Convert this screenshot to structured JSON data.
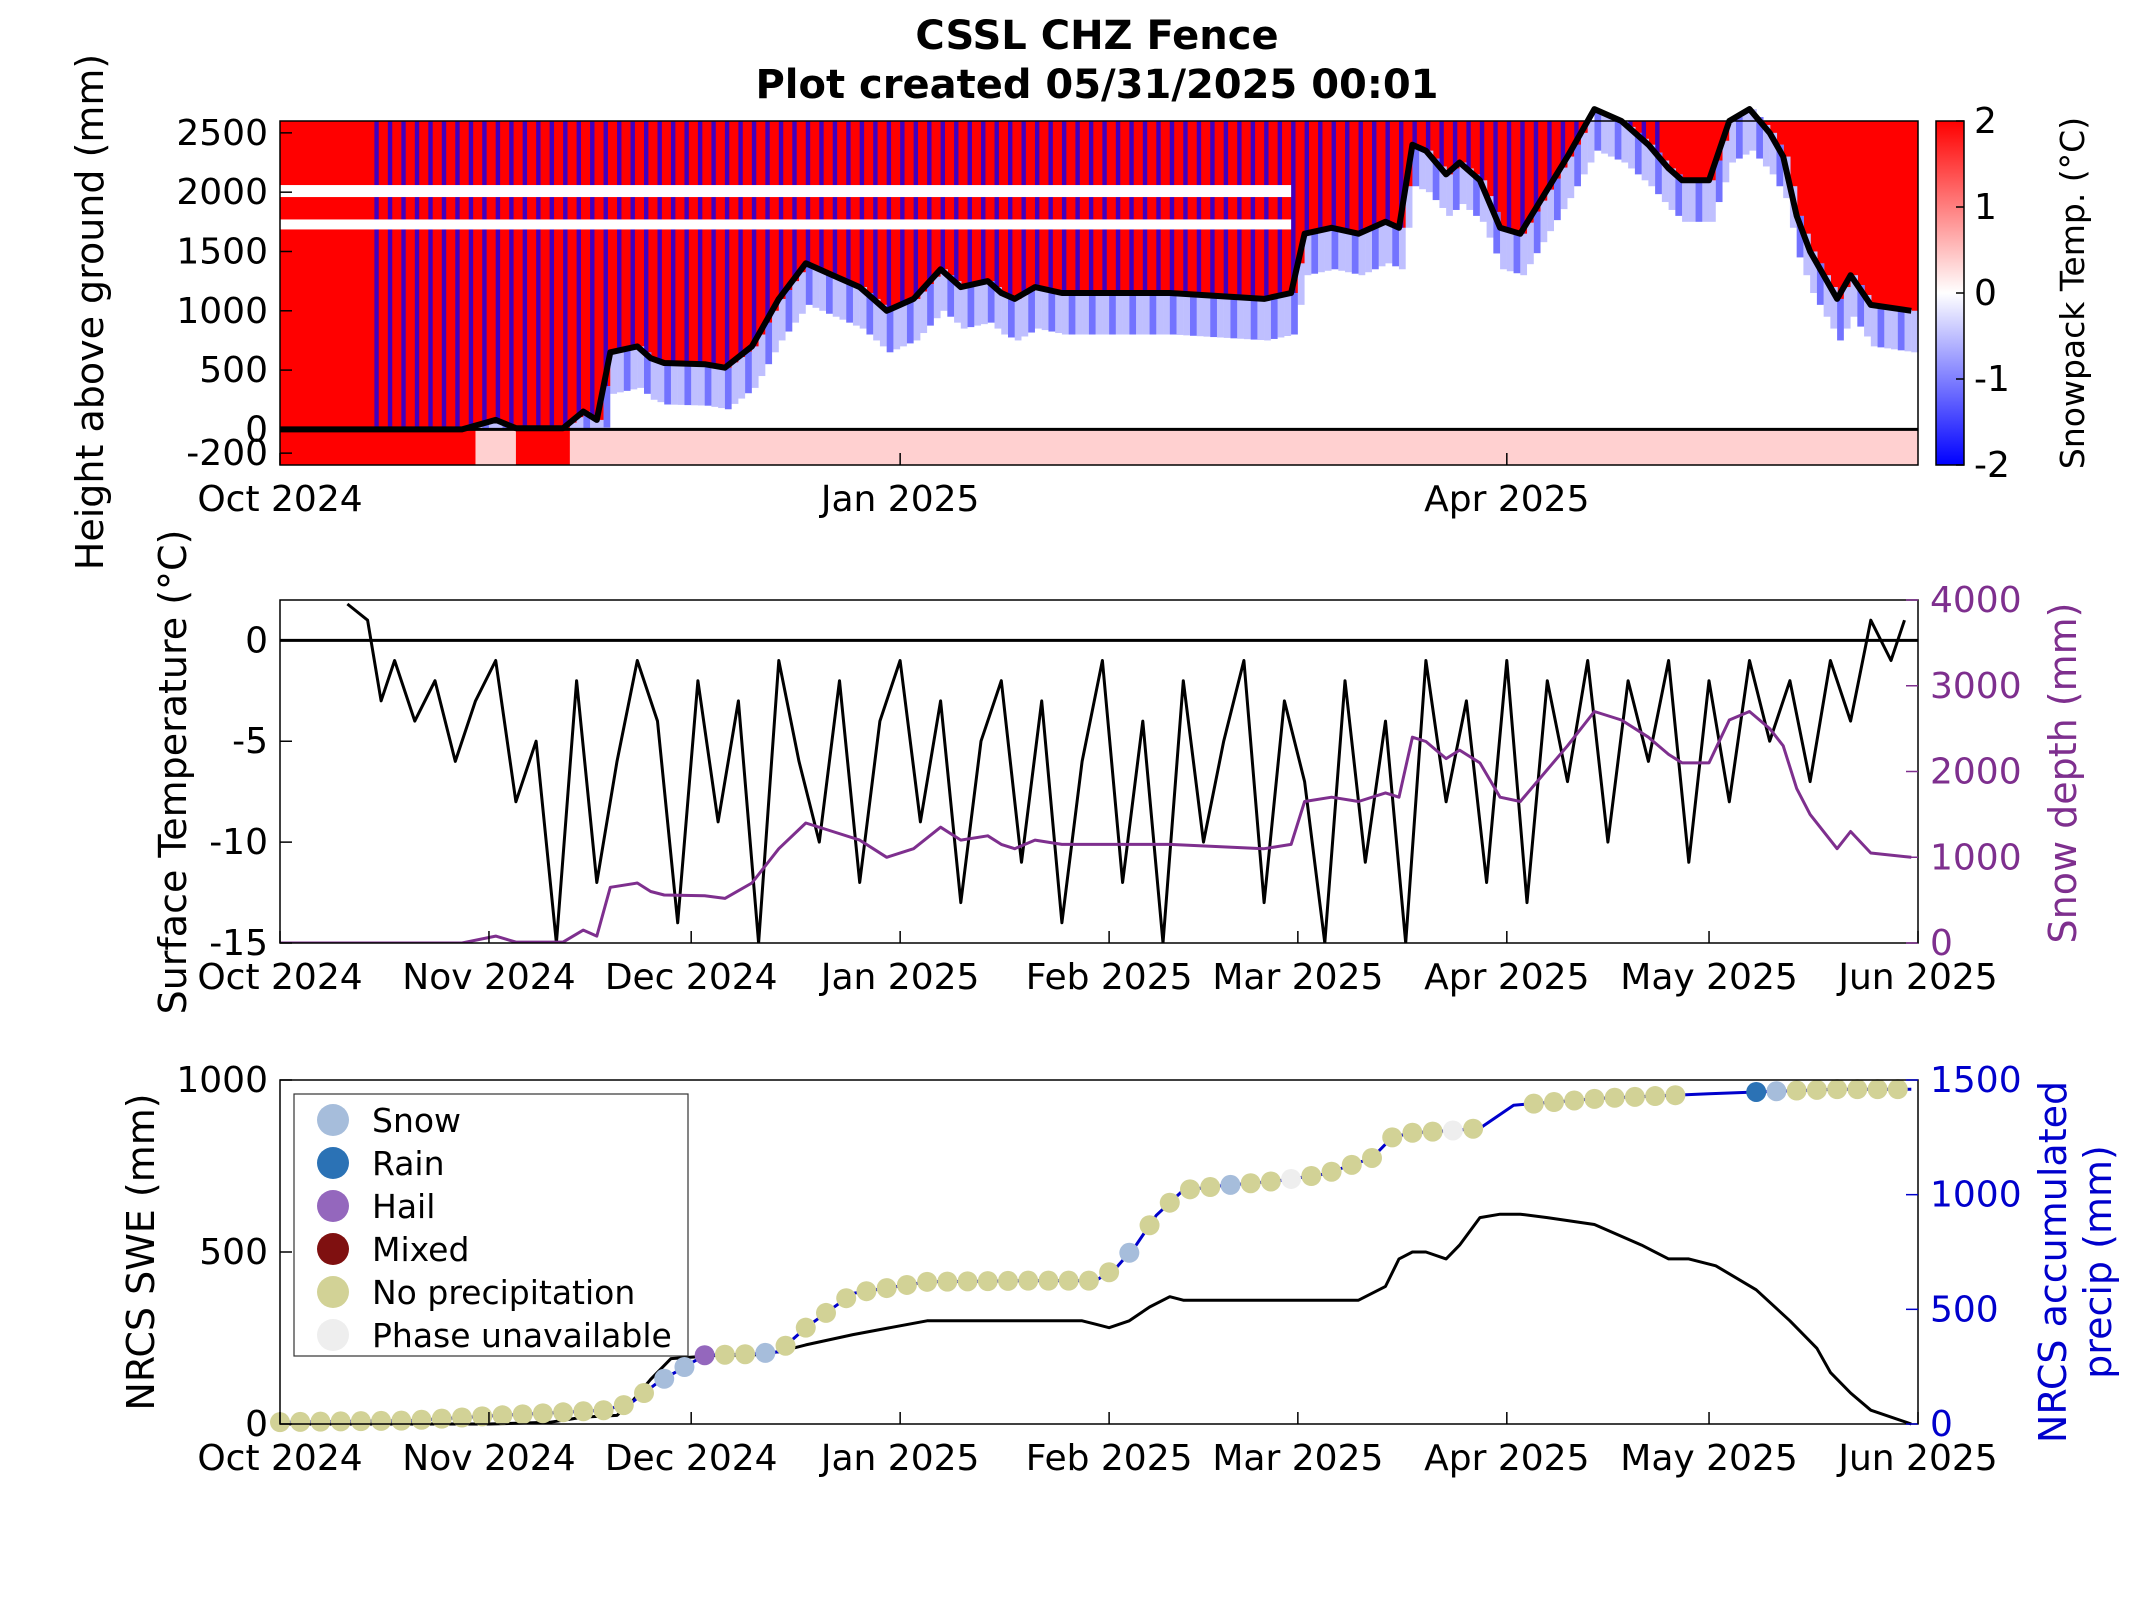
{
  "title": "CSSL CHZ Fence",
  "subtitle": "Plot created 05/31/2025 00:01",
  "colors": {
    "warm": "#ff0000",
    "cold": "#0000ff",
    "depth_line": "#000000",
    "surface_temp": "#000000",
    "snow_depth": "#7e2f8e",
    "swe": "#000000",
    "precip": "#0000cc",
    "right_axis_2": "#7e2f8e",
    "right_axis_3": "#0000cc"
  },
  "chart_data": [
    {
      "type": "heatmap",
      "ylabel": "Height above ground (mm)",
      "colorbar_label": "Snowpack Temp. (°C)",
      "colorbar_range": [
        -2,
        2
      ],
      "colorbar_ticks": [
        "2",
        "1",
        "0",
        "-1",
        "-2"
      ],
      "x_range": [
        "2024-10-01",
        "2025-06-01"
      ],
      "ylim": [
        -300,
        2600
      ],
      "yticks": [
        "-200",
        "0",
        "500",
        "1000",
        "1500",
        "2000",
        "2500"
      ],
      "xticks": [
        {
          "date": "2024-10-01",
          "label": "Oct 2024"
        },
        {
          "date": "2025-01-01",
          "label": "Jan 2025"
        },
        {
          "date": "2025-04-01",
          "label": "Apr 2025"
        }
      ],
      "snow_depth_line": {
        "name": "Snow depth",
        "x": [
          "2024-10-01",
          "2024-10-28",
          "2024-11-02",
          "2024-11-05",
          "2024-11-12",
          "2024-11-15",
          "2024-11-17",
          "2024-11-19",
          "2024-11-23",
          "2024-11-25",
          "2024-11-27",
          "2024-12-03",
          "2024-12-06",
          "2024-12-10",
          "2024-12-14",
          "2024-12-18",
          "2024-12-22",
          "2024-12-26",
          "2024-12-28",
          "2024-12-30",
          "2025-01-03",
          "2025-01-07",
          "2025-01-10",
          "2025-01-14",
          "2025-01-16",
          "2025-01-18",
          "2025-01-21",
          "2025-01-25",
          "2025-02-01",
          "2025-02-10",
          "2025-02-24",
          "2025-02-28",
          "2025-03-02",
          "2025-03-06",
          "2025-03-10",
          "2025-03-14",
          "2025-03-16",
          "2025-03-18",
          "2025-03-20",
          "2025-03-23",
          "2025-03-25",
          "2025-03-28",
          "2025-03-31",
          "2025-04-03",
          "2025-04-10",
          "2025-04-14",
          "2025-04-18",
          "2025-04-22",
          "2025-04-25",
          "2025-04-27",
          "2025-05-01",
          "2025-05-04",
          "2025-05-07",
          "2025-05-10",
          "2025-05-12",
          "2025-05-14",
          "2025-05-16",
          "2025-05-20",
          "2025-05-22",
          "2025-05-25",
          "2025-05-31"
        ],
        "y": [
          0,
          0,
          80,
          10,
          10,
          150,
          80,
          650,
          700,
          600,
          560,
          550,
          520,
          700,
          1100,
          1400,
          1300,
          1200,
          1100,
          1000,
          1100,
          1350,
          1200,
          1250,
          1150,
          1100,
          1200,
          1150,
          1150,
          1150,
          1100,
          1150,
          1650,
          1700,
          1650,
          1750,
          1700,
          2400,
          2350,
          2150,
          2250,
          2100,
          1700,
          1650,
          2300,
          2700,
          2600,
          2400,
          2200,
          2100,
          2100,
          2600,
          2700,
          2500,
          2300,
          1800,
          1500,
          1100,
          1300,
          1050,
          1000
        ]
      }
    },
    {
      "type": "line",
      "ylabel": "Surface Temperature (°C)",
      "ylabel_right": "Snow depth (mm)",
      "ylim": [
        -15,
        2
      ],
      "yticks": [
        "0",
        "-5",
        "-10",
        "-15"
      ],
      "ylim_right": [
        0,
        4000
      ],
      "yticks_right": [
        "4000",
        "3000",
        "2000",
        "1000",
        "0"
      ],
      "x_range": [
        "2024-10-01",
        "2025-06-01"
      ],
      "xticks": [
        {
          "date": "2024-10-01",
          "label": "Oct 2024"
        },
        {
          "date": "2024-11-01",
          "label": "Nov 2024"
        },
        {
          "date": "2024-12-01",
          "label": "Dec 2024"
        },
        {
          "date": "2025-01-01",
          "label": "Jan 2025"
        },
        {
          "date": "2025-02-01",
          "label": "Feb 2025"
        },
        {
          "date": "2025-03-01",
          "label": "Mar 2025"
        },
        {
          "date": "2025-04-01",
          "label": "Apr 2025"
        },
        {
          "date": "2025-05-01",
          "label": "May 2025"
        },
        {
          "date": "2025-06-01",
          "label": "Jun 2025"
        }
      ],
      "reference_line": {
        "y": 0
      },
      "series": [
        {
          "axis": "left",
          "x": [
            "2024-10-11",
            "2024-10-14",
            "2024-10-16",
            "2024-10-18",
            "2024-10-21",
            "2024-10-24",
            "2024-10-27",
            "2024-10-30",
            "2024-11-02",
            "2024-11-05",
            "2024-11-08",
            "2024-11-11",
            "2024-11-14",
            "2024-11-17",
            "2024-11-20",
            "2024-11-23",
            "2024-11-26",
            "2024-11-29",
            "2024-12-02",
            "2024-12-05",
            "2024-12-08",
            "2024-12-11",
            "2024-12-14",
            "2024-12-17",
            "2024-12-20",
            "2024-12-23",
            "2024-12-26",
            "2024-12-29",
            "2025-01-01",
            "2025-01-04",
            "2025-01-07",
            "2025-01-10",
            "2025-01-13",
            "2025-01-16",
            "2025-01-19",
            "2025-01-22",
            "2025-01-25",
            "2025-01-28",
            "2025-01-31",
            "2025-02-03",
            "2025-02-06",
            "2025-02-09",
            "2025-02-12",
            "2025-02-15",
            "2025-02-18",
            "2025-02-21",
            "2025-02-24",
            "2025-02-27",
            "2025-03-02",
            "2025-03-05",
            "2025-03-08",
            "2025-03-11",
            "2025-03-14",
            "2025-03-17",
            "2025-03-20",
            "2025-03-23",
            "2025-03-26",
            "2025-03-29",
            "2025-04-01",
            "2025-04-04",
            "2025-04-07",
            "2025-04-10",
            "2025-04-13",
            "2025-04-16",
            "2025-04-19",
            "2025-04-22",
            "2025-04-25",
            "2025-04-28",
            "2025-05-01",
            "2025-05-04",
            "2025-05-07",
            "2025-05-10",
            "2025-05-13",
            "2025-05-16",
            "2025-05-19",
            "2025-05-22",
            "2025-05-25",
            "2025-05-28",
            "2025-05-30"
          ],
          "y": [
            1.8,
            1,
            -3,
            -1,
            -4,
            -2,
            -6,
            -3,
            -1,
            -8,
            -5,
            -15,
            -2,
            -12,
            -6,
            -1,
            -4,
            -14,
            -2,
            -9,
            -3,
            -15,
            -1,
            -6,
            -10,
            -2,
            -12,
            -4,
            -1,
            -9,
            -3,
            -13,
            -5,
            -2,
            -11,
            -3,
            -14,
            -6,
            -1,
            -12,
            -4,
            -15,
            -2,
            -10,
            -5,
            -1,
            -13,
            -3,
            -7,
            -15,
            -2,
            -11,
            -4,
            -15,
            -1,
            -8,
            -3,
            -12,
            -1,
            -13,
            -2,
            -7,
            -1,
            -10,
            -2,
            -6,
            -1,
            -11,
            -2,
            -8,
            -1,
            -5,
            -2,
            -7,
            -1,
            -4,
            1,
            -1,
            1
          ]
        },
        {
          "axis": "right",
          "name": "Snow depth",
          "x": [
            "2024-10-01",
            "2024-10-28",
            "2024-11-02",
            "2024-11-05",
            "2024-11-12",
            "2024-11-15",
            "2024-11-17",
            "2024-11-19",
            "2024-11-23",
            "2024-11-25",
            "2024-11-27",
            "2024-12-03",
            "2024-12-06",
            "2024-12-10",
            "2024-12-14",
            "2024-12-18",
            "2024-12-22",
            "2024-12-26",
            "2024-12-28",
            "2024-12-30",
            "2025-01-03",
            "2025-01-07",
            "2025-01-10",
            "2025-01-14",
            "2025-01-16",
            "2025-01-18",
            "2025-01-21",
            "2025-01-25",
            "2025-02-01",
            "2025-02-10",
            "2025-02-24",
            "2025-02-28",
            "2025-03-02",
            "2025-03-06",
            "2025-03-10",
            "2025-03-14",
            "2025-03-16",
            "2025-03-18",
            "2025-03-20",
            "2025-03-23",
            "2025-03-25",
            "2025-03-28",
            "2025-03-31",
            "2025-04-03",
            "2025-04-10",
            "2025-04-14",
            "2025-04-18",
            "2025-04-22",
            "2025-04-25",
            "2025-04-27",
            "2025-05-01",
            "2025-05-04",
            "2025-05-07",
            "2025-05-10",
            "2025-05-12",
            "2025-05-14",
            "2025-05-16",
            "2025-05-20",
            "2025-05-22",
            "2025-05-25",
            "2025-05-31"
          ],
          "y": [
            0,
            0,
            80,
            10,
            10,
            150,
            80,
            650,
            700,
            600,
            560,
            550,
            520,
            700,
            1100,
            1400,
            1300,
            1200,
            1100,
            1000,
            1100,
            1350,
            1200,
            1250,
            1150,
            1100,
            1200,
            1150,
            1150,
            1150,
            1100,
            1150,
            1650,
            1700,
            1650,
            1750,
            1700,
            2400,
            2350,
            2150,
            2250,
            2100,
            1700,
            1650,
            2300,
            2700,
            2600,
            2400,
            2200,
            2100,
            2100,
            2600,
            2700,
            2500,
            2300,
            1800,
            1500,
            1100,
            1300,
            1050,
            1000
          ]
        }
      ]
    },
    {
      "type": "line",
      "ylabel": "NRCS SWE (mm)",
      "ylabel_right": [
        "NRCS accumulated",
        "precip (mm)"
      ],
      "ylim": [
        0,
        1000
      ],
      "yticks": [
        "0",
        "500",
        "1000"
      ],
      "ylim_right": [
        0,
        1500
      ],
      "yticks_right": [
        "1500",
        "1000",
        "500",
        "0"
      ],
      "x_range": [
        "2024-10-01",
        "2025-06-01"
      ],
      "xticks": [
        {
          "date": "2024-10-01",
          "label": "Oct 2024"
        },
        {
          "date": "2024-11-01",
          "label": "Nov 2024"
        },
        {
          "date": "2024-12-01",
          "label": "Dec 2024"
        },
        {
          "date": "2025-01-01",
          "label": "Jan 2025"
        },
        {
          "date": "2025-02-01",
          "label": "Feb 2025"
        },
        {
          "date": "2025-03-01",
          "label": "Mar 2025"
        },
        {
          "date": "2025-04-01",
          "label": "Apr 2025"
        },
        {
          "date": "2025-05-01",
          "label": "May 2025"
        },
        {
          "date": "2025-06-01",
          "label": "Jun 2025"
        }
      ],
      "swe": {
        "x": [
          "2024-10-01",
          "2024-10-20",
          "2024-11-01",
          "2024-11-10",
          "2024-11-15",
          "2024-11-20",
          "2024-11-22",
          "2024-11-25",
          "2024-11-28",
          "2024-12-05",
          "2024-12-10",
          "2024-12-14",
          "2024-12-18",
          "2024-12-25",
          "2025-01-05",
          "2025-01-20",
          "2025-01-28",
          "2025-01-30",
          "2025-02-01",
          "2025-02-04",
          "2025-02-07",
          "2025-02-10",
          "2025-02-12",
          "2025-02-18",
          "2025-02-28",
          "2025-03-10",
          "2025-03-14",
          "2025-03-16",
          "2025-03-18",
          "2025-03-20",
          "2025-03-23",
          "2025-03-25",
          "2025-03-28",
          "2025-03-31",
          "2025-04-03",
          "2025-04-07",
          "2025-04-14",
          "2025-04-21",
          "2025-04-25",
          "2025-04-28",
          "2025-05-02",
          "2025-05-08",
          "2025-05-13",
          "2025-05-17",
          "2025-05-19",
          "2025-05-22",
          "2025-05-25",
          "2025-05-31"
        ],
        "y": [
          0,
          0,
          0,
          5,
          20,
          25,
          60,
          130,
          190,
          200,
          200,
          210,
          230,
          260,
          300,
          300,
          300,
          290,
          280,
          300,
          340,
          370,
          360,
          360,
          360,
          360,
          400,
          480,
          500,
          500,
          480,
          520,
          600,
          610,
          610,
          600,
          580,
          520,
          480,
          480,
          460,
          390,
          300,
          220,
          150,
          90,
          40,
          0
        ]
      },
      "precip": {
        "x": [
          "2024-10-01",
          "2024-10-20",
          "2024-11-01",
          "2024-11-10",
          "2024-11-18",
          "2024-11-22",
          "2024-11-26",
          "2024-12-03",
          "2024-12-10",
          "2024-12-14",
          "2024-12-18",
          "2024-12-25",
          "2025-01-05",
          "2025-01-20",
          "2025-01-30",
          "2025-02-02",
          "2025-02-05",
          "2025-02-08",
          "2025-02-12",
          "2025-02-18",
          "2025-02-26",
          "2025-03-05",
          "2025-03-12",
          "2025-03-15",
          "2025-03-18",
          "2025-03-24",
          "2025-03-28",
          "2025-04-02",
          "2025-04-15",
          "2025-05-01",
          "2025-05-10",
          "2025-05-20",
          "2025-05-31"
        ],
        "y": [
          8,
          15,
          35,
          48,
          60,
          90,
          180,
          300,
          305,
          315,
          420,
          570,
          620,
          625,
          625,
          680,
          780,
          910,
          1020,
          1040,
          1060,
          1090,
          1160,
          1250,
          1270,
          1280,
          1290,
          1390,
          1420,
          1440,
          1450,
          1460,
          1460
        ]
      },
      "legend": {
        "placement": "top-left",
        "items": [
          {
            "label": "Snow",
            "color": "#a6bddb"
          },
          {
            "label": "Rain",
            "color": "#2b72b5"
          },
          {
            "label": "Hail",
            "color": "#9467bd"
          },
          {
            "label": "Mixed",
            "color": "#7f1010"
          },
          {
            "label": "No precipitation",
            "color": "#d2d296"
          },
          {
            "label": "Phase unavailable",
            "color": "#eeeeee"
          }
        ]
      }
    }
  ]
}
